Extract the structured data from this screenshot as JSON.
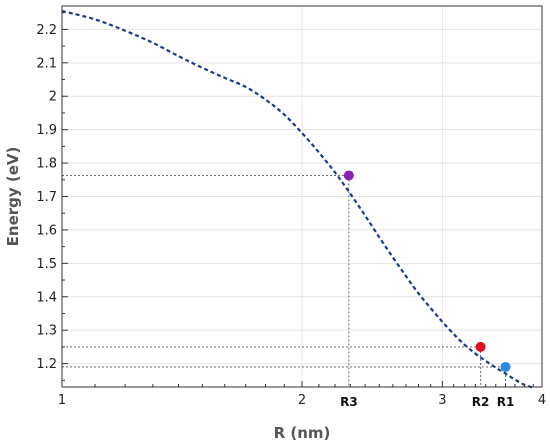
{
  "chart_data": {
    "type": "line",
    "title": "",
    "xlabel": "R (nm)",
    "ylabel": "Energy (eV)",
    "xscale": "log",
    "xlim": [
      1,
      4
    ],
    "ylim": [
      1.13,
      2.27
    ],
    "grid": true,
    "x_ticks": [
      1,
      2,
      3,
      4
    ],
    "x_tick_labels": [
      "1",
      "2",
      "3",
      "4"
    ],
    "y_ticks": [
      1.2,
      1.3,
      1.4,
      1.5,
      1.6,
      1.7,
      1.8,
      1.9,
      2,
      2.1,
      2.2
    ],
    "y_tick_labels": [
      "1.2",
      "1.3",
      "1.4",
      "1.5",
      "1.6",
      "1.7",
      "1.8",
      "1.9",
      "2",
      "2.1",
      "2.2"
    ],
    "series": [
      {
        "color": "#1a3b8a",
        "style": "dashed",
        "x": [
          1.0,
          1.1,
          1.2,
          1.3,
          1.4,
          1.5,
          1.6,
          1.7,
          1.8,
          1.9,
          2.0,
          2.1,
          2.2,
          2.3,
          2.4,
          2.5,
          2.6,
          2.7,
          2.8,
          2.9,
          3.0,
          3.1,
          3.2,
          3.3,
          3.4,
          3.5,
          3.6,
          3.7,
          3.8,
          3.9
        ],
        "y": [
          2.255,
          2.23,
          2.196,
          2.16,
          2.12,
          2.085,
          2.055,
          2.028,
          1.99,
          1.945,
          1.89,
          1.832,
          1.772,
          1.708,
          1.643,
          1.578,
          1.518,
          1.462,
          1.41,
          1.366,
          1.325,
          1.288,
          1.256,
          1.23,
          1.208,
          1.188,
          1.17,
          1.152,
          1.137,
          1.128
        ]
      }
    ],
    "markers": [
      {
        "label": "R3",
        "x": 2.29,
        "y": 1.763,
        "color": "#8a1fb8"
      },
      {
        "label": "R2",
        "x": 3.35,
        "y": 1.25,
        "color": "#e01020"
      },
      {
        "label": "R1",
        "x": 3.6,
        "y": 1.19,
        "color": "#2a8ae6"
      }
    ]
  }
}
